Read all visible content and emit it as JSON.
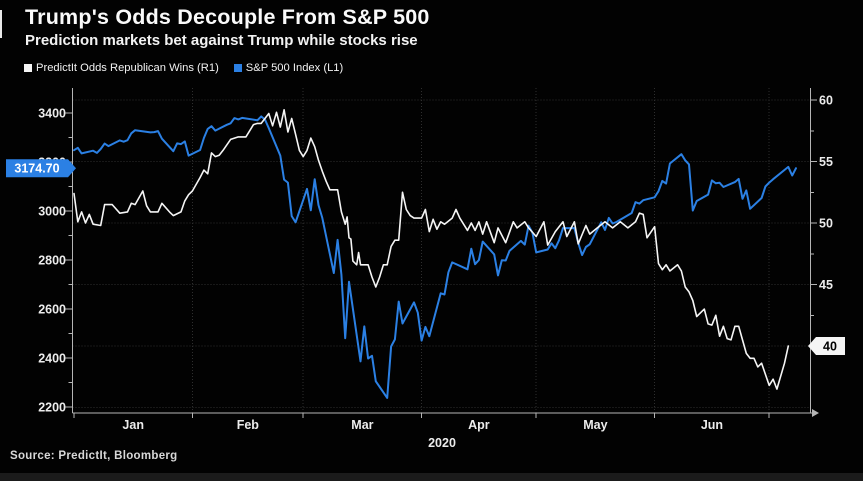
{
  "header": {
    "title": "Trump's Odds Decouple From S&P 500",
    "subtitle": "Prediction markets bet against Trump while stocks rise"
  },
  "legend": [
    {
      "label": "PredictIt Odds Republican Wins (R1)",
      "color": "#f5f5f5"
    },
    {
      "label": "S&P 500 Index (L1)",
      "color": "#2b80e4"
    }
  ],
  "source": "Source: PredictIt, Bloomberg",
  "colors": {
    "background": "#020202",
    "grid": "#2e2e2e",
    "axis": "#b5b5b5",
    "tick_text": "#ececec",
    "line_white": "#f5f5f5",
    "line_blue": "#2b80e4",
    "badge_blue_bg": "#2b80e4",
    "badge_blue_fg": "#ffffff",
    "badge_white_bg": "#f5f5f5",
    "badge_white_fg": "#000000"
  },
  "chart_data": {
    "type": "line",
    "title": "Trump's Odds Decouple From S&P 500",
    "subtitle": "Prediction markets bet against Trump while stocks rise",
    "x_unit": "days since Jan 1 2020",
    "x_axis": {
      "year_label": "2020",
      "month_labels": [
        "Jan",
        "Feb",
        "Mar",
        "Apr",
        "May",
        "Jun"
      ],
      "month_label_days": [
        15.5,
        45.5,
        75.5,
        106,
        136.5,
        167
      ],
      "month_boundary_days": [
        31,
        60,
        91,
        121,
        152,
        182
      ],
      "domain_days": [
        0,
        189
      ]
    },
    "left_axis": {
      "side": "left",
      "series": "S&P 500 Index",
      "ticks": [
        2200,
        2400,
        2600,
        2800,
        3000,
        3200,
        3400
      ],
      "minor_ticks": [
        2300,
        2500,
        2700,
        2900,
        3100,
        3300
      ]
    },
    "right_axis": {
      "side": "right",
      "series": "PredictIt Odds Republican Wins",
      "ticks": [
        40,
        45,
        50,
        55,
        60
      ],
      "minor_ticks": [
        42.5,
        47.5,
        52.5,
        57.5
      ],
      "gridline_values": [
        35,
        40,
        45,
        50,
        55,
        60
      ]
    },
    "badges": [
      {
        "text": "3174.70",
        "axis": "left",
        "value": 3174.7,
        "side": "left"
      },
      {
        "text": "40",
        "axis": "right",
        "value": 40,
        "side": "right"
      }
    ],
    "series": [
      {
        "name": "S&P 500 Index (L1)",
        "axis": "left",
        "color": "#2b80e4",
        "width": 2,
        "points": [
          [
            0,
            3248
          ],
          [
            1,
            3258
          ],
          [
            2,
            3235
          ],
          [
            5,
            3246
          ],
          [
            6,
            3237
          ],
          [
            7,
            3253
          ],
          [
            8,
            3275
          ],
          [
            9,
            3265
          ],
          [
            12,
            3288
          ],
          [
            13,
            3283
          ],
          [
            14,
            3289
          ],
          [
            15,
            3317
          ],
          [
            16,
            3330
          ],
          [
            20,
            3321
          ],
          [
            21,
            3322
          ],
          [
            22,
            3326
          ],
          [
            23,
            3295
          ],
          [
            26,
            3244
          ],
          [
            27,
            3276
          ],
          [
            28,
            3273
          ],
          [
            29,
            3284
          ],
          [
            30,
            3226
          ],
          [
            33,
            3249
          ],
          [
            34,
            3298
          ],
          [
            35,
            3335
          ],
          [
            36,
            3346
          ],
          [
            37,
            3328
          ],
          [
            40,
            3352
          ],
          [
            41,
            3358
          ],
          [
            42,
            3379
          ],
          [
            43,
            3374
          ],
          [
            44,
            3380
          ],
          [
            48,
            3370
          ],
          [
            49,
            3386
          ],
          [
            50,
            3373
          ],
          [
            51,
            3338
          ],
          [
            54,
            3226
          ],
          [
            55,
            3128
          ],
          [
            56,
            3116
          ],
          [
            57,
            2979
          ],
          [
            58,
            2954
          ],
          [
            61,
            3090
          ],
          [
            62,
            3003
          ],
          [
            63,
            3130
          ],
          [
            64,
            3024
          ],
          [
            65,
            2972
          ],
          [
            68,
            2747
          ],
          [
            69,
            2882
          ],
          [
            70,
            2741
          ],
          [
            71,
            2481
          ],
          [
            72,
            2711
          ],
          [
            75,
            2386
          ],
          [
            76,
            2529
          ],
          [
            77,
            2398
          ],
          [
            78,
            2409
          ],
          [
            79,
            2305
          ],
          [
            82,
            2237
          ],
          [
            83,
            2447
          ],
          [
            84,
            2476
          ],
          [
            85,
            2630
          ],
          [
            86,
            2541
          ],
          [
            89,
            2627
          ],
          [
            90,
            2585
          ],
          [
            91,
            2471
          ],
          [
            92,
            2527
          ],
          [
            93,
            2489
          ],
          [
            96,
            2664
          ],
          [
            97,
            2659
          ],
          [
            98,
            2750
          ],
          [
            99,
            2790
          ],
          [
            103,
            2762
          ],
          [
            104,
            2846
          ],
          [
            105,
            2783
          ],
          [
            106,
            2800
          ],
          [
            107,
            2875
          ],
          [
            110,
            2823
          ],
          [
            111,
            2737
          ],
          [
            112,
            2799
          ],
          [
            113,
            2798
          ],
          [
            114,
            2837
          ],
          [
            117,
            2878
          ],
          [
            118,
            2863
          ],
          [
            119,
            2940
          ],
          [
            120,
            2912
          ],
          [
            121,
            2831
          ],
          [
            124,
            2843
          ],
          [
            125,
            2868
          ],
          [
            126,
            2848
          ],
          [
            127,
            2881
          ],
          [
            128,
            2930
          ],
          [
            131,
            2930
          ],
          [
            132,
            2870
          ],
          [
            133,
            2820
          ],
          [
            134,
            2853
          ],
          [
            135,
            2864
          ],
          [
            138,
            2954
          ],
          [
            139,
            2923
          ],
          [
            140,
            2972
          ],
          [
            141,
            2949
          ],
          [
            142,
            2955
          ],
          [
            146,
            2992
          ],
          [
            147,
            3036
          ],
          [
            148,
            3030
          ],
          [
            149,
            3044
          ],
          [
            152,
            3056
          ],
          [
            153,
            3081
          ],
          [
            154,
            3123
          ],
          [
            155,
            3112
          ],
          [
            156,
            3194
          ],
          [
            159,
            3232
          ],
          [
            160,
            3207
          ],
          [
            161,
            3190
          ],
          [
            162,
            3002
          ],
          [
            163,
            3041
          ],
          [
            166,
            3067
          ],
          [
            167,
            3125
          ],
          [
            168,
            3113
          ],
          [
            169,
            3115
          ],
          [
            170,
            3098
          ],
          [
            173,
            3118
          ],
          [
            174,
            3131
          ],
          [
            175,
            3050
          ],
          [
            176,
            3084
          ],
          [
            177,
            3009
          ],
          [
            180,
            3053
          ],
          [
            181,
            3100
          ],
          [
            182,
            3116
          ],
          [
            183,
            3130
          ],
          [
            187,
            3180
          ],
          [
            188,
            3145
          ],
          [
            189,
            3174.7
          ]
        ]
      },
      {
        "name": "PredictIt Odds Republican Wins (R1)",
        "axis": "right",
        "color": "#f5f5f5",
        "width": 1.6,
        "points": [
          [
            0,
            52.4
          ],
          [
            1,
            50.1
          ],
          [
            2,
            50.9
          ],
          [
            3,
            50.0
          ],
          [
            4,
            50.7
          ],
          [
            5,
            49.9
          ],
          [
            7,
            49.8
          ],
          [
            8,
            51.5
          ],
          [
            10,
            51.5
          ],
          [
            12,
            50.8
          ],
          [
            14,
            50.9
          ],
          [
            15,
            51.6
          ],
          [
            16,
            51.5
          ],
          [
            18,
            52.6
          ],
          [
            19,
            51.4
          ],
          [
            20,
            50.9
          ],
          [
            22,
            50.9
          ],
          [
            23,
            51.6
          ],
          [
            25,
            50.9
          ],
          [
            26,
            50.6
          ],
          [
            28,
            50.9
          ],
          [
            29,
            51.8
          ],
          [
            30,
            52.3
          ],
          [
            31,
            52.6
          ],
          [
            33,
            53.7
          ],
          [
            34,
            54.3
          ],
          [
            35,
            54.0
          ],
          [
            36,
            55.7
          ],
          [
            37,
            55.4
          ],
          [
            38,
            55.5
          ],
          [
            39,
            55.9
          ],
          [
            41,
            56.8
          ],
          [
            43,
            57.0
          ],
          [
            45,
            57.0
          ],
          [
            47,
            58.0
          ],
          [
            48,
            58.1
          ],
          [
            49,
            58.1
          ],
          [
            51,
            58.9
          ],
          [
            52,
            57.9
          ],
          [
            53,
            59.0
          ],
          [
            54,
            57.8
          ],
          [
            55,
            59.2
          ],
          [
            56,
            57.4
          ],
          [
            57,
            58.5
          ],
          [
            58,
            57.2
          ],
          [
            59,
            55.9
          ],
          [
            60,
            55.4
          ],
          [
            61,
            55.9
          ],
          [
            62,
            56.9
          ],
          [
            63,
            56.2
          ],
          [
            64,
            55.1
          ],
          [
            65,
            54.2
          ],
          [
            66,
            53.4
          ],
          [
            67,
            52.7
          ],
          [
            69,
            52.7
          ],
          [
            70,
            50.9
          ],
          [
            71,
            49.9
          ],
          [
            71.5,
            50.5
          ],
          [
            72,
            48.8
          ],
          [
            72.5,
            48.7
          ],
          [
            73,
            46.9
          ],
          [
            74,
            46.6
          ],
          [
            74.5,
            47.6
          ],
          [
            75,
            46.6
          ],
          [
            77,
            46.6
          ],
          [
            78,
            45.6
          ],
          [
            79,
            44.8
          ],
          [
            80,
            45.6
          ],
          [
            81,
            46.6
          ],
          [
            82,
            46.6
          ],
          [
            83,
            48.1
          ],
          [
            84,
            48.6
          ],
          [
            85,
            48.6
          ],
          [
            86,
            52.5
          ],
          [
            87,
            51.1
          ],
          [
            88,
            50.6
          ],
          [
            89,
            50.4
          ],
          [
            91,
            50.4
          ],
          [
            92,
            51.1
          ],
          [
            93,
            49.3
          ],
          [
            94,
            50.3
          ],
          [
            95,
            49.5
          ],
          [
            96,
            50.1
          ],
          [
            97,
            49.9
          ],
          [
            99,
            50.4
          ],
          [
            100,
            51.1
          ],
          [
            101,
            50.4
          ],
          [
            103,
            49.4
          ],
          [
            104,
            50.0
          ],
          [
            105,
            49.4
          ],
          [
            106,
            50.1
          ],
          [
            107,
            49.1
          ],
          [
            108,
            50.1
          ],
          [
            110,
            48.4
          ],
          [
            111,
            49.6
          ],
          [
            113,
            48.4
          ],
          [
            115,
            50.1
          ],
          [
            116,
            49.6
          ],
          [
            118,
            50.1
          ],
          [
            119,
            49.6
          ],
          [
            121,
            48.9
          ],
          [
            123,
            50.1
          ],
          [
            124,
            48.2
          ],
          [
            126,
            49.3
          ],
          [
            128,
            50.1
          ],
          [
            129,
            48.9
          ],
          [
            131,
            50.1
          ],
          [
            132,
            48.3
          ],
          [
            134,
            49.8
          ],
          [
            135,
            49.1
          ],
          [
            137,
            49.6
          ],
          [
            139,
            50.1
          ],
          [
            141,
            49.6
          ],
          [
            143,
            50.1
          ],
          [
            145,
            49.6
          ],
          [
            147,
            50.1
          ],
          [
            148,
            50.8
          ],
          [
            149,
            50.7
          ],
          [
            150,
            48.8
          ],
          [
            152,
            49.7
          ],
          [
            153,
            46.7
          ],
          [
            154,
            46.2
          ],
          [
            155,
            46.6
          ],
          [
            156,
            46.1
          ],
          [
            158,
            46.6
          ],
          [
            159,
            46.1
          ],
          [
            160,
            44.8
          ],
          [
            161,
            44.4
          ],
          [
            162,
            43.7
          ],
          [
            163,
            42.4
          ],
          [
            165,
            43.0
          ],
          [
            166,
            41.8
          ],
          [
            167,
            41.7
          ],
          [
            168,
            42.5
          ],
          [
            169,
            40.8
          ],
          [
            170,
            41.6
          ],
          [
            171,
            40.6
          ],
          [
            172,
            40.5
          ],
          [
            173,
            41.6
          ],
          [
            174,
            41.6
          ],
          [
            175,
            40.5
          ],
          [
            176,
            39.4
          ],
          [
            177,
            39.0
          ],
          [
            178,
            39.0
          ],
          [
            179,
            38.3
          ],
          [
            180,
            38.6
          ],
          [
            182,
            36.8
          ],
          [
            183,
            37.3
          ],
          [
            184,
            36.5
          ],
          [
            186,
            38.6
          ],
          [
            187,
            40.0
          ]
        ]
      }
    ]
  }
}
